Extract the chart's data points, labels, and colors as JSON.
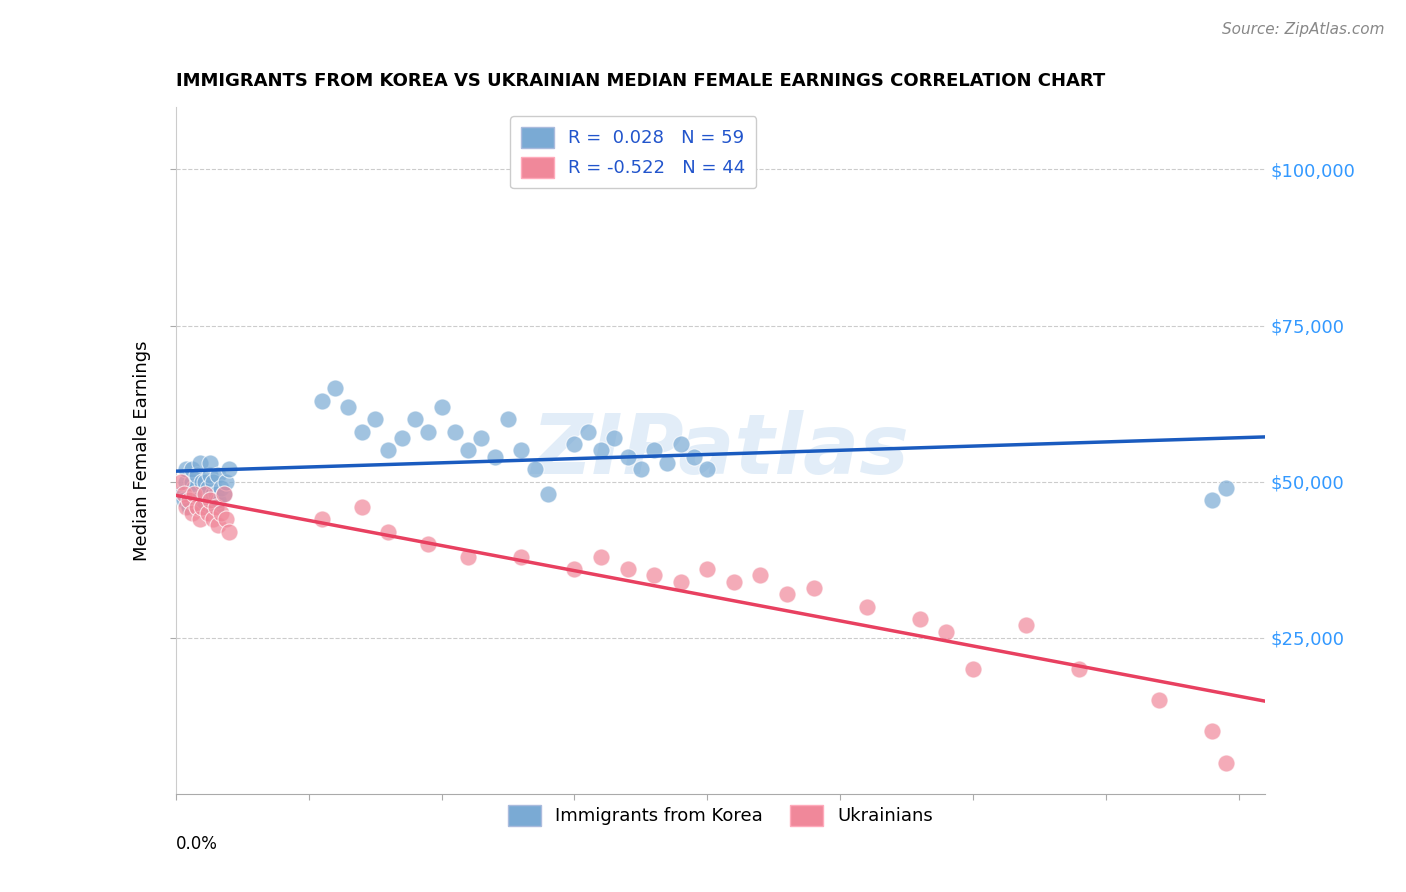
{
  "title": "IMMIGRANTS FROM KOREA VS UKRAINIAN MEDIAN FEMALE EARNINGS CORRELATION CHART",
  "source": "Source: ZipAtlas.com",
  "ylabel": "Median Female Earnings",
  "ytick_labels": [
    "$25,000",
    "$50,000",
    "$75,000",
    "$100,000"
  ],
  "ytick_values": [
    25000,
    50000,
    75000,
    100000
  ],
  "ymin": 0,
  "ymax": 110000,
  "xmin": 0.0,
  "xmax": 0.41,
  "korea_color": "#7aaad4",
  "ukraine_color": "#f0889a",
  "korea_line_color": "#1a5bbf",
  "ukraine_line_color": "#e84060",
  "watermark": "ZIPatlas",
  "korea_N": 59,
  "ukraine_N": 44,
  "seed": 42
}
